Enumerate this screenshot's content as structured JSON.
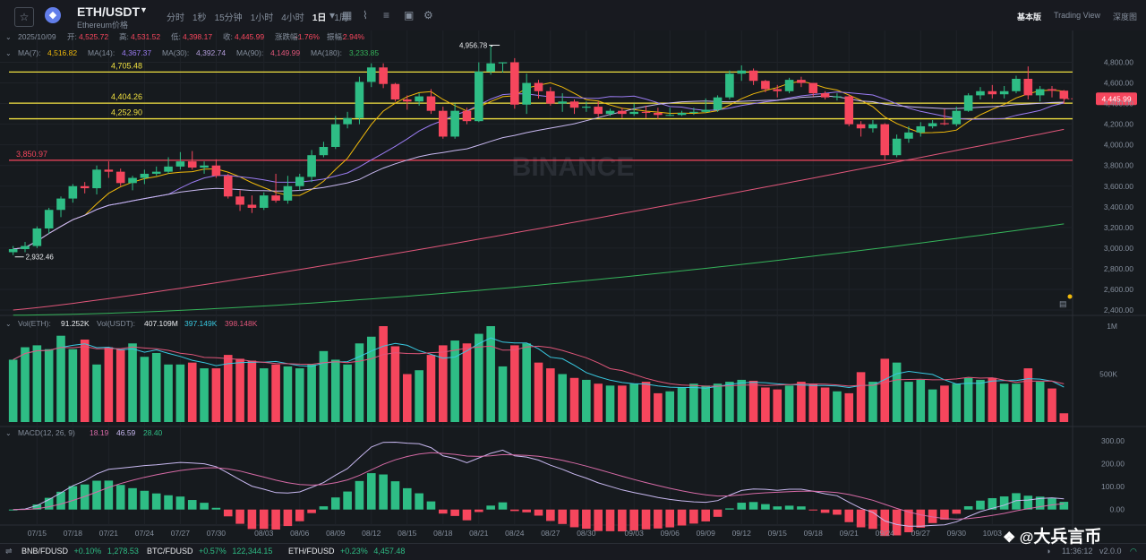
{
  "header": {
    "pair": "ETH/USDT",
    "subtitle": "Ethereum价格",
    "intervals": [
      "分时",
      "1秒",
      "15分钟",
      "1小时",
      "4小时",
      "1日",
      "1周"
    ],
    "active_interval": "1日",
    "views": [
      "基本版",
      "Trading View",
      "深度图"
    ],
    "active_view": "基本版"
  },
  "ohlc_info": {
    "date": "2025/10/09",
    "open_label": "开:",
    "open": "4,525.72",
    "high_label": "高:",
    "high": "4,531.52",
    "low_label": "低:",
    "low": "4,398.17",
    "close_label": "收:",
    "close": "4,445.99",
    "change_label": "涨跌幅:",
    "change": "-1.76%",
    "amplitude_label": "振幅:",
    "amplitude": "2.94%"
  },
  "ma_info": [
    {
      "label": "MA(7):",
      "value": "4,516.82",
      "color": "#f0b90b"
    },
    {
      "label": "MA(14):",
      "value": "4,367.37",
      "color": "#9b7cf2"
    },
    {
      "label": "MA(30):",
      "value": "4,392.74",
      "color": "#b39ddb"
    },
    {
      "label": "MA(90):",
      "value": "4,149.99",
      "color": "#e0567a"
    },
    {
      "label": "MA(180):",
      "value": "3,233.85",
      "color": "#35b35a"
    }
  ],
  "price_levels": [
    {
      "label": "4,705.48",
      "value": 4705.48,
      "color": "#f0e040"
    },
    {
      "label": "4,404.26",
      "value": 4404.26,
      "color": "#f0e040"
    },
    {
      "label": "4,252.90",
      "value": 4252.9,
      "color": "#f0e040"
    },
    {
      "label": "3,850.97",
      "value": 3850.97,
      "color": "#f6465d"
    }
  ],
  "annotations": {
    "high_marker": "4,956.78",
    "low_marker": "2,932.46"
  },
  "current_price": "4,445.99",
  "price_axis_ticks": [
    "4,800.00",
    "4,600.00",
    "4,400.00",
    "4,200.00",
    "4,000.00",
    "3,800.00",
    "3,600.00",
    "3,400.00",
    "3,200.00",
    "3,000.00",
    "2,800.00",
    "2,600.00",
    "2,400.00"
  ],
  "date_ticks": [
    "07/15",
    "07/18",
    "07/21",
    "07/24",
    "07/27",
    "07/30",
    "08/03",
    "08/06",
    "08/09",
    "08/12",
    "08/15",
    "08/18",
    "08/21",
    "08/24",
    "08/27",
    "08/30",
    "09/03",
    "09/06",
    "09/09",
    "09/12",
    "09/15",
    "09/18",
    "09/21",
    "09/24",
    "09/27",
    "09/30",
    "10/03"
  ],
  "volume_info": {
    "vol_eth_label": "Vol(ETH):",
    "vol_eth": "91.252K",
    "vol_usdt_label": "Vol(USDT):",
    "vol_usdt": "407.109M",
    "v1": "397.149K",
    "v2": "398.148K",
    "ticks": [
      "1M",
      "500K"
    ]
  },
  "macd_info": {
    "label": "MACD(12, 26, 9)",
    "dif": "18.19",
    "dea": "46.59",
    "hist": "28.40",
    "ticks": [
      "300.00",
      "200.00",
      "100.00",
      "0.00"
    ]
  },
  "watermark": "BINANCE",
  "overlay_brand": "大兵言币",
  "ticker_bar": [
    {
      "symbol": "BNB/FDUSD",
      "change": "+0.10%",
      "price": "1,278.53"
    },
    {
      "symbol": "BTC/FDUSD",
      "change": "+0.57%",
      "price": "122,344.15"
    },
    {
      "symbol": "ETH/FDUSD",
      "change": "+0.23%",
      "price": "4,457.48"
    }
  ],
  "status": {
    "time": "11:36:12",
    "version": "v2.0.0"
  },
  "colors": {
    "up": "#2ebd85",
    "down": "#f6465d",
    "bg": "#161a1e"
  },
  "chart_data": {
    "type": "candlestick",
    "dates": [
      "07/13",
      "07/14",
      "07/15",
      "07/16",
      "07/17",
      "07/18",
      "07/19",
      "07/20",
      "07/21",
      "07/22",
      "07/23",
      "07/24",
      "07/25",
      "07/26",
      "07/27",
      "07/28",
      "07/29",
      "07/30",
      "07/31",
      "08/01",
      "08/02",
      "08/03",
      "08/04",
      "08/05",
      "08/06",
      "08/07",
      "08/08",
      "08/09",
      "08/10",
      "08/11",
      "08/12",
      "08/13",
      "08/14",
      "08/15",
      "08/16",
      "08/17",
      "08/18",
      "08/19",
      "08/20",
      "08/21",
      "08/22",
      "08/23",
      "08/24",
      "08/25",
      "08/26",
      "08/27",
      "08/28",
      "08/29",
      "08/30",
      "08/31",
      "09/01",
      "09/02",
      "09/03",
      "09/04",
      "09/05",
      "09/06",
      "09/07",
      "09/08",
      "09/09",
      "09/10",
      "09/11",
      "09/12",
      "09/13",
      "09/14",
      "09/15",
      "09/16",
      "09/17",
      "09/18",
      "09/19",
      "09/20",
      "09/21",
      "09/22",
      "09/23",
      "09/24",
      "09/25",
      "09/26",
      "09/27",
      "09/28",
      "09/29",
      "09/30",
      "10/01",
      "10/02",
      "10/03",
      "10/04",
      "10/05",
      "10/06",
      "10/07",
      "10/08",
      "10/09"
    ],
    "open": [
      2960,
      2990,
      3020,
      3190,
      3370,
      3480,
      3600,
      3580,
      3760,
      3740,
      3630,
      3680,
      3720,
      3740,
      3790,
      3840,
      3780,
      3800,
      3700,
      3500,
      3420,
      3390,
      3510,
      3460,
      3600,
      3690,
      3900,
      3980,
      4200,
      4260,
      4610,
      4750,
      4590,
      4440,
      4420,
      4470,
      4330,
      4080,
      4330,
      4230,
      4710,
      4790,
      4800,
      4390,
      4600,
      4520,
      4400,
      4420,
      4360,
      4370,
      4300,
      4330,
      4300,
      4320,
      4310,
      4290,
      4290,
      4310,
      4320,
      4340,
      4460,
      4690,
      4720,
      4620,
      4540,
      4520,
      4630,
      4600,
      4500,
      4460,
      4470,
      4200,
      4160,
      4200,
      3900,
      4060,
      4120,
      4180,
      4210,
      4200,
      4330,
      4480,
      4520,
      4490,
      4520,
      4640,
      4480,
      4540,
      4525
    ],
    "high": [
      3020,
      3060,
      3210,
      3390,
      3500,
      3620,
      3640,
      3800,
      3840,
      3770,
      3700,
      3760,
      3790,
      3880,
      3930,
      3940,
      3840,
      3860,
      3720,
      3560,
      3510,
      3540,
      3720,
      3700,
      3720,
      3950,
      4030,
      4280,
      4320,
      4660,
      4790,
      4790,
      4600,
      4480,
      4500,
      4540,
      4370,
      4400,
      4360,
      4800,
      4957,
      4800,
      4840,
      4690,
      4630,
      4560,
      4500,
      4440,
      4420,
      4420,
      4350,
      4360,
      4400,
      4380,
      4360,
      4360,
      4330,
      4360,
      4450,
      4480,
      4720,
      4770,
      4740,
      4630,
      4580,
      4650,
      4660,
      4600,
      4520,
      4500,
      4490,
      4230,
      4240,
      4210,
      4100,
      4180,
      4220,
      4240,
      4350,
      4370,
      4500,
      4560,
      4580,
      4570,
      4670,
      4760,
      4570,
      4570,
      4531
    ],
    "low": [
      2932,
      2960,
      3000,
      3140,
      3300,
      3440,
      3530,
      3520,
      3680,
      3600,
      3560,
      3620,
      3700,
      3720,
      3760,
      3760,
      3720,
      3680,
      3480,
      3360,
      3340,
      3370,
      3440,
      3430,
      3560,
      3640,
      3880,
      3960,
      4160,
      4200,
      4560,
      4550,
      4420,
      4340,
      4380,
      4300,
      4060,
      4060,
      4200,
      4220,
      4680,
      4700,
      4350,
      4300,
      4450,
      4380,
      4320,
      4300,
      4320,
      4270,
      4280,
      4260,
      4280,
      4260,
      4250,
      4280,
      4280,
      4290,
      4310,
      4320,
      4440,
      4620,
      4580,
      4510,
      4460,
      4500,
      4560,
      4470,
      4440,
      4430,
      4180,
      4080,
      4120,
      3850,
      3880,
      4020,
      4080,
      4160,
      4190,
      4180,
      4320,
      4440,
      4450,
      4450,
      4500,
      4440,
      4420,
      4460,
      4398
    ],
    "close": [
      2990,
      3020,
      3190,
      3370,
      3480,
      3600,
      3580,
      3760,
      3740,
      3630,
      3680,
      3720,
      3740,
      3790,
      3840,
      3780,
      3800,
      3700,
      3500,
      3420,
      3390,
      3510,
      3460,
      3600,
      3690,
      3900,
      3980,
      4200,
      4260,
      4610,
      4750,
      4590,
      4440,
      4420,
      4470,
      4330,
      4080,
      4330,
      4230,
      4710,
      4790,
      4800,
      4390,
      4600,
      4520,
      4400,
      4420,
      4360,
      4370,
      4300,
      4330,
      4300,
      4320,
      4310,
      4290,
      4290,
      4310,
      4320,
      4340,
      4460,
      4690,
      4720,
      4620,
      4540,
      4520,
      4630,
      4600,
      4500,
      4460,
      4470,
      4200,
      4160,
      4200,
      3900,
      4060,
      4120,
      4180,
      4210,
      4200,
      4330,
      4480,
      4520,
      4490,
      4520,
      4640,
      4480,
      4540,
      4525,
      4446
    ],
    "volume_k": [
      650,
      780,
      800,
      760,
      900,
      760,
      860,
      600,
      780,
      760,
      820,
      680,
      720,
      600,
      600,
      620,
      560,
      560,
      700,
      660,
      640,
      560,
      600,
      580,
      560,
      600,
      740,
      650,
      600,
      820,
      890,
      1000,
      790,
      500,
      540,
      700,
      800,
      850,
      820,
      920,
      1000,
      580,
      800,
      820,
      620,
      560,
      500,
      460,
      440,
      400,
      380,
      380,
      400,
      420,
      300,
      320,
      360,
      400,
      380,
      400,
      420,
      440,
      430,
      360,
      340,
      380,
      420,
      400,
      360,
      320,
      300,
      520,
      420,
      660,
      620,
      420,
      440,
      340,
      380,
      400,
      460,
      440,
      460,
      400,
      400,
      560,
      420,
      350,
      91
    ],
    "price_range": [
      2400,
      4900
    ],
    "ma_series": [
      "MA(7)",
      "MA(14)",
      "MA(30)",
      "MA(90)",
      "MA(180)"
    ]
  }
}
